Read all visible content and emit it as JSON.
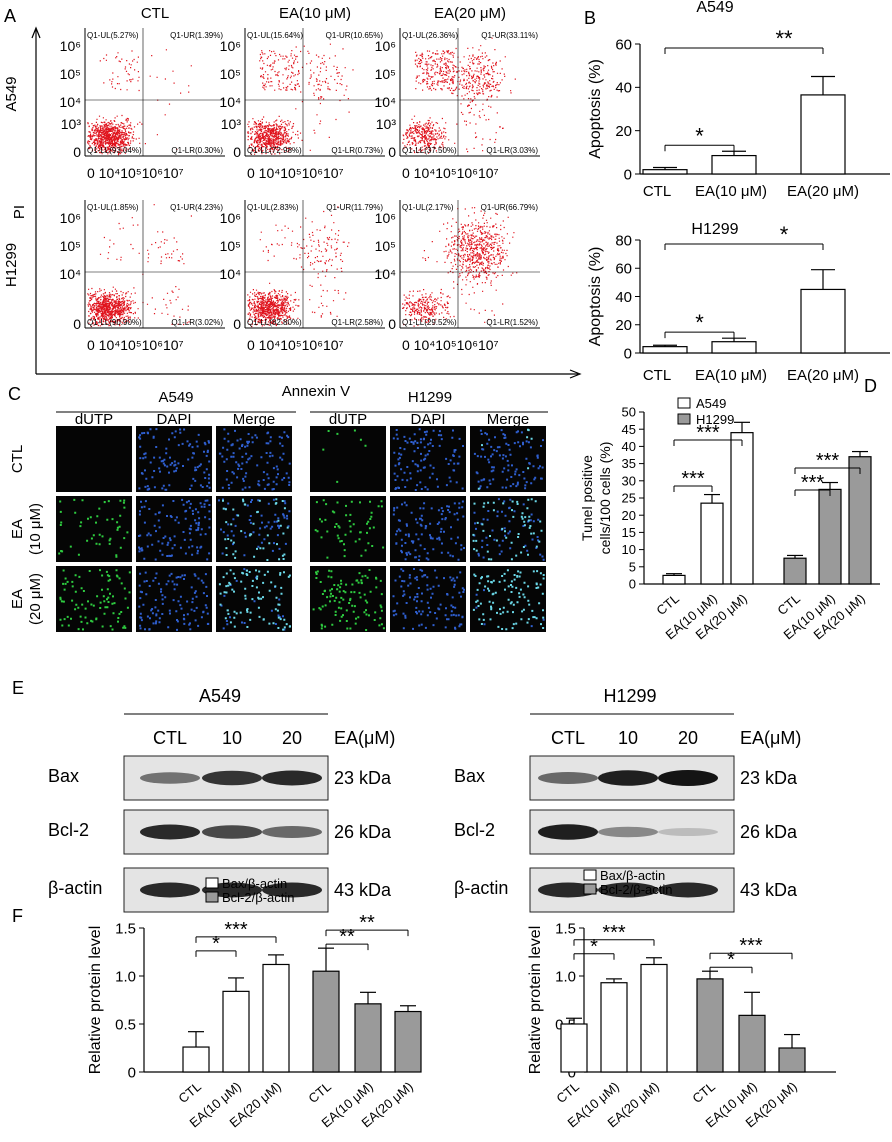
{
  "panels": {
    "A": "A",
    "B": "B",
    "C": "C",
    "D": "D",
    "E": "E",
    "F": "F"
  },
  "colors": {
    "flow_dot": "#e0141e",
    "white_bar": "#ffffff",
    "gray_bar": "#9a9a9a",
    "axis": "#000000",
    "green_cell": "#2ecc40",
    "blue_cell": "#2f5fd0",
    "cyan_cell": "#6ad8e8"
  },
  "panelA": {
    "conditions": [
      "CTL",
      "EA(10 μM)",
      "EA(20 μM)"
    ],
    "cell_lines": [
      "A549",
      "H1299"
    ],
    "ylabel": "PI",
    "xlabel": "Annexin V",
    "y_ticks": [
      "10⁶",
      "10⁵",
      "10⁴",
      "10³",
      "0"
    ],
    "y_ticks_h1299": [
      "10⁶",
      "10⁵",
      "10⁴",
      "0"
    ],
    "x_ticks": "0 10⁴10⁵10⁶10⁷",
    "quadrants": [
      [
        {
          "UL": "Q1-UL(5.27%)",
          "UR": "Q1-UR(1.39%)",
          "LL": "Q1-LL(93.04%)",
          "LR": "Q1-LR(0.30%)",
          "early": 0.003,
          "late": 0.0139,
          "ul": 0.0527
        },
        {
          "UL": "Q1-UL(15.64%)",
          "UR": "Q1-UR(10.65%)",
          "LL": "Q1-LL(72.98%)",
          "LR": "Q1-LR(0.73%)",
          "early": 0.0073,
          "late": 0.1065,
          "ul": 0.1564
        },
        {
          "UL": "Q1-UL(26.36%)",
          "UR": "Q1-UR(33.11%)",
          "LL": "Q1-LL(37.50%)",
          "LR": "Q1-LR(3.03%)",
          "early": 0.0303,
          "late": 0.3311,
          "ul": 0.2636
        }
      ],
      [
        {
          "UL": "Q1-UL(1.85%)",
          "UR": "Q1-UR(4.23%)",
          "LL": "Q1-LL(90.90%)",
          "LR": "Q1-LR(3.02%)",
          "early": 0.0302,
          "late": 0.0423,
          "ul": 0.0185
        },
        {
          "UL": "Q1-UL(2.83%)",
          "UR": "Q1-UR(11.79%)",
          "LL": "Q1-LL(82.80%)",
          "LR": "Q1-LR(2.58%)",
          "early": 0.0258,
          "late": 0.1179,
          "ul": 0.0283
        },
        {
          "UL": "Q1-UL(2.17%)",
          "UR": "Q1-UR(66.79%)",
          "LL": "Q1-LL(29.52%)",
          "LR": "Q1-LR(1.52%)",
          "early": 0.0152,
          "late": 0.6679,
          "ul": 0.0217
        }
      ]
    ]
  },
  "panelC": {
    "cell_lines": [
      "A549",
      "H1299"
    ],
    "stains": [
      "dUTP",
      "DAPI",
      "Merge"
    ],
    "row_labels": [
      [
        "CTL"
      ],
      [
        "EA",
        "(10 μM)"
      ],
      [
        "EA",
        "(20 μM)"
      ]
    ]
  },
  "panelE": {
    "cell_lines": [
      "A549",
      "H1299"
    ],
    "lanes": [
      "CTL",
      "10",
      "20"
    ],
    "unit": "EA(μM)",
    "proteins": [
      "Bax",
      "Bcl-2",
      "β-actin"
    ],
    "sizes": [
      "23 kDa",
      "26 kDa",
      "43 kDa"
    ],
    "intensity": [
      [
        [
          0.55,
          0.85,
          0.9
        ],
        [
          0.9,
          0.75,
          0.6
        ],
        [
          0.9,
          0.9,
          0.9
        ]
      ],
      [
        [
          0.6,
          0.95,
          1.0
        ],
        [
          0.95,
          0.45,
          0.2
        ],
        [
          0.9,
          0.9,
          0.9
        ]
      ]
    ]
  },
  "chart_data": [
    {
      "type": "bar",
      "title": "A549",
      "ylabel": "Apoptosis (%)",
      "categories": [
        "CTL",
        "EA(10 μM)",
        "EA(20 μM)"
      ],
      "series": [
        {
          "values": [
            2,
            8.5,
            36.5
          ],
          "errors": [
            1,
            2,
            8.5
          ]
        }
      ],
      "ylim": [
        0,
        60
      ],
      "yticks": [
        0,
        20,
        40,
        60
      ],
      "annotations": [
        {
          "from": 0,
          "to": 1,
          "label": "*"
        },
        {
          "from": 0,
          "to": 2,
          "label": "**"
        }
      ]
    },
    {
      "type": "bar",
      "title": "H1299",
      "ylabel": "Apoptosis (%)",
      "categories": [
        "CTL",
        "EA(10 μM)",
        "EA(20 μM)"
      ],
      "series": [
        {
          "values": [
            4.5,
            8,
            45
          ],
          "errors": [
            1,
            2.5,
            14
          ]
        }
      ],
      "ylim": [
        0,
        80
      ],
      "yticks": [
        0,
        20,
        40,
        60,
        80
      ],
      "annotations": [
        {
          "from": 0,
          "to": 1,
          "label": "*"
        },
        {
          "from": 0,
          "to": 2,
          "label": "*"
        }
      ]
    },
    {
      "type": "bar",
      "ylabel": "Tunel positive cells/100 cells (%)",
      "ylabel_lines": [
        "Tunel positive",
        "cells/100 cells (%)"
      ],
      "categories": [
        "CTL",
        "EA(10 μM)",
        "EA(20 μM)"
      ],
      "series": [
        {
          "name": "A549",
          "values": [
            2.5,
            23.5,
            44
          ],
          "errors": [
            0.5,
            2.5,
            3
          ]
        },
        {
          "name": "H1299",
          "values": [
            7.5,
            27.5,
            37
          ],
          "errors": [
            0.8,
            2,
            1.5
          ]
        }
      ],
      "ylim": [
        0,
        50
      ],
      "yticks": [
        0,
        5,
        10,
        15,
        20,
        25,
        30,
        35,
        40,
        45,
        50
      ],
      "annotations": [
        {
          "group": 0,
          "from": 0,
          "to": 1,
          "label": "***"
        },
        {
          "group": 0,
          "from": 0,
          "to": 2,
          "label": "***"
        },
        {
          "group": 1,
          "from": 0,
          "to": 1,
          "label": "***"
        },
        {
          "group": 1,
          "from": 0,
          "to": 2,
          "label": "***"
        }
      ]
    },
    {
      "type": "bar",
      "subtitle": "A549",
      "ylabel": "Relative protein level",
      "categories": [
        "CTL",
        "EA(10 μM)",
        "EA(20 μM)"
      ],
      "series": [
        {
          "name": "Bax/β-actin",
          "values": [
            0.26,
            0.84,
            1.12
          ],
          "errors": [
            0.16,
            0.14,
            0.1
          ]
        },
        {
          "name": "Bcl-2/β-actin",
          "values": [
            1.05,
            0.71,
            0.63
          ],
          "errors": [
            0.24,
            0.12,
            0.06
          ]
        }
      ],
      "ylim": [
        0,
        1.5
      ],
      "yticks": [
        "0",
        "0.5",
        "1.0",
        "1.5"
      ],
      "annotations": [
        {
          "group": 0,
          "from": 0,
          "to": 1,
          "label": "*"
        },
        {
          "group": 0,
          "from": 0,
          "to": 2,
          "label": "***"
        },
        {
          "group": 1,
          "from": 0,
          "to": 1,
          "label": "**"
        },
        {
          "group": 1,
          "from": 0,
          "to": 2,
          "label": "**"
        }
      ]
    },
    {
      "type": "bar",
      "subtitle": "H1299",
      "ylabel": "Relative protein level",
      "categories": [
        "CTL",
        "EA(10 μM)",
        "EA(20 μM)"
      ],
      "series": [
        {
          "name": "Bax/β-actin",
          "values": [
            0.5,
            0.93,
            1.12
          ],
          "errors": [
            0.06,
            0.04,
            0.07
          ]
        },
        {
          "name": "Bcl-2/β-actin",
          "values": [
            0.97,
            0.59,
            0.25
          ],
          "errors": [
            0.08,
            0.24,
            0.14
          ]
        }
      ],
      "ylim": [
        0,
        1.5
      ],
      "yticks": [
        "0",
        "0.5",
        "1.0",
        "1.5"
      ],
      "annotations": [
        {
          "group": 0,
          "from": 0,
          "to": 1,
          "label": "*"
        },
        {
          "group": 0,
          "from": 0,
          "to": 2,
          "label": "***"
        },
        {
          "group": 1,
          "from": 0,
          "to": 1,
          "label": "*"
        },
        {
          "group": 1,
          "from": 0,
          "to": 2,
          "label": "***"
        }
      ]
    }
  ]
}
